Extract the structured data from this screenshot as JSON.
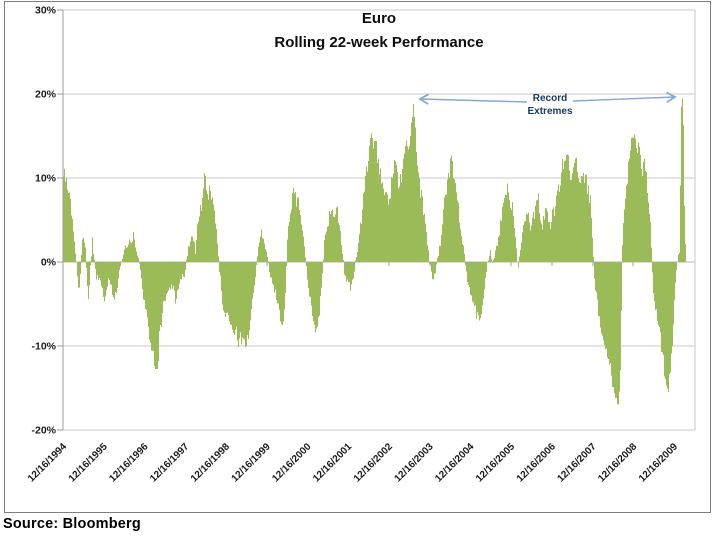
{
  "colors": {
    "bar": "#9bbb59",
    "grid": "#c8c8c8",
    "axis": "#9d9d9d",
    "zero_line": "#b5b5b5",
    "frame_border": "#7f7f7f",
    "label_text": "#1a1a1a",
    "annotation_text": "#17375e",
    "arrow": "#84a7d3"
  },
  "chart_data": {
    "type": "bar",
    "title": "Euro",
    "subtitle": "Rolling 22-week Performance",
    "unit": "%",
    "ylim": [
      -20,
      30
    ],
    "grid": "horizontal",
    "legend": "none",
    "annotation_line1": "Record",
    "annotation_line2": "Extremes",
    "source": "Source: Bloomberg",
    "yticks": [
      {
        "value": 30,
        "label": "30%"
      },
      {
        "value": 20,
        "label": "20%"
      },
      {
        "value": 10,
        "label": "10%"
      },
      {
        "value": 0,
        "label": "0%"
      },
      {
        "value": -10,
        "label": "-10%"
      },
      {
        "value": -20,
        "label": "-20%"
      }
    ],
    "xtick_labels": [
      "12/16/1994",
      "12/16/1995",
      "12/16/1996",
      "12/16/1997",
      "12/16/1998",
      "12/16/1999",
      "12/16/2000",
      "12/16/2001",
      "12/16/2002",
      "12/16/2003",
      "12/16/2004",
      "12/16/2005",
      "12/16/2006",
      "12/16/2007",
      "12/16/2008",
      "12/16/2009"
    ],
    "x_start_year": 1994.958,
    "sampling": "weekly bars, values reconstructed from chart as keypoints [year, percent]",
    "annotations": [
      {
        "text": "Record Extremes",
        "targets": [
          {
            "year": 2003.55,
            "value": 19.0
          },
          {
            "year": 2010.13,
            "value": 20.4
          }
        ]
      }
    ],
    "series": [
      {
        "name": "Euro rolling 22-week performance (%)",
        "keypoints": [
          [
            1994.96,
            10.2
          ],
          [
            1995.08,
            8.8
          ],
          [
            1995.21,
            3.0
          ],
          [
            1995.28,
            -0.5
          ],
          [
            1995.35,
            -3.5
          ],
          [
            1995.43,
            3.6
          ],
          [
            1995.5,
            1.2
          ],
          [
            1995.57,
            -4.2
          ],
          [
            1995.67,
            2.4
          ],
          [
            1995.75,
            -1.5
          ],
          [
            1995.87,
            -2.8
          ],
          [
            1995.99,
            -4.3
          ],
          [
            1996.09,
            -1.6
          ],
          [
            1996.21,
            -5.0
          ],
          [
            1996.31,
            -1.8
          ],
          [
            1996.43,
            1.2
          ],
          [
            1996.56,
            2.2
          ],
          [
            1996.68,
            3.0
          ],
          [
            1996.75,
            1.5
          ],
          [
            1996.83,
            -0.5
          ],
          [
            1996.92,
            -4.0
          ],
          [
            1997.02,
            -7.0
          ],
          [
            1997.1,
            -9.0
          ],
          [
            1997.17,
            -11.0
          ],
          [
            1997.27,
            -12.4
          ],
          [
            1997.34,
            -7.5
          ],
          [
            1997.44,
            -4.5
          ],
          [
            1997.54,
            -3.0
          ],
          [
            1997.64,
            -3.2
          ],
          [
            1997.73,
            -4.6
          ],
          [
            1997.83,
            -2.2
          ],
          [
            1997.93,
            -1.5
          ],
          [
            1998.03,
            2.0
          ],
          [
            1998.13,
            3.4
          ],
          [
            1998.2,
            1.0
          ],
          [
            1998.27,
            5.5
          ],
          [
            1998.35,
            7.0
          ],
          [
            1998.42,
            9.6
          ],
          [
            1998.5,
            8.0
          ],
          [
            1998.57,
            8.4
          ],
          [
            1998.64,
            7.6
          ],
          [
            1998.72,
            4.0
          ],
          [
            1998.79,
            -1.0
          ],
          [
            1998.86,
            -4.5
          ],
          [
            1998.96,
            -6.6
          ],
          [
            1999.06,
            -7.8
          ],
          [
            1999.16,
            -8.5
          ],
          [
            1999.26,
            -9.2
          ],
          [
            1999.36,
            -9.0
          ],
          [
            1999.45,
            -9.6
          ],
          [
            1999.53,
            -8.0
          ],
          [
            1999.6,
            -5.0
          ],
          [
            1999.67,
            -1.5
          ],
          [
            1999.75,
            2.2
          ],
          [
            1999.82,
            3.3
          ],
          [
            1999.89,
            2.6
          ],
          [
            1999.97,
            0.5
          ],
          [
            2000.04,
            -1.8
          ],
          [
            2000.14,
            -3.5
          ],
          [
            2000.24,
            -5.5
          ],
          [
            2000.31,
            -6.8
          ],
          [
            2000.39,
            -6.0
          ],
          [
            2000.44,
            0.5
          ],
          [
            2000.48,
            4.5
          ],
          [
            2000.56,
            6.5
          ],
          [
            2000.63,
            9.0
          ],
          [
            2000.68,
            7.0
          ],
          [
            2000.73,
            7.8
          ],
          [
            2000.78,
            6.0
          ],
          [
            2000.83,
            3.5
          ],
          [
            2000.9,
            0.5
          ],
          [
            2000.98,
            -3.0
          ],
          [
            2001.05,
            -5.5
          ],
          [
            2001.12,
            -7.0
          ],
          [
            2001.2,
            -8.8
          ],
          [
            2001.27,
            -4.0
          ],
          [
            2001.32,
            -1.0
          ],
          [
            2001.37,
            2.5
          ],
          [
            2001.44,
            4.5
          ],
          [
            2001.52,
            6.3
          ],
          [
            2001.59,
            5.0
          ],
          [
            2001.66,
            7.0
          ],
          [
            2001.74,
            4.5
          ],
          [
            2001.79,
            2.0
          ],
          [
            2001.86,
            -1.5
          ],
          [
            2001.96,
            -2.8
          ],
          [
            2002.03,
            -3.2
          ],
          [
            2002.1,
            -0.8
          ],
          [
            2002.18,
            1.5
          ],
          [
            2002.25,
            4.0
          ],
          [
            2002.33,
            7.5
          ],
          [
            2002.4,
            11.0
          ],
          [
            2002.47,
            14.0
          ],
          [
            2002.52,
            15.6
          ],
          [
            2002.57,
            13.5
          ],
          [
            2002.62,
            14.8
          ],
          [
            2002.67,
            12.5
          ],
          [
            2002.74,
            11.0
          ],
          [
            2002.79,
            9.0
          ],
          [
            2002.86,
            8.0
          ],
          [
            2002.94,
            7.0
          ],
          [
            2002.99,
            8.5
          ],
          [
            2003.04,
            10.5
          ],
          [
            2003.09,
            12.8
          ],
          [
            2003.14,
            11.0
          ],
          [
            2003.18,
            8.0
          ],
          [
            2003.23,
            9.5
          ],
          [
            2003.28,
            11.5
          ],
          [
            2003.33,
            13.8
          ],
          [
            2003.38,
            14.5
          ],
          [
            2003.43,
            13.0
          ],
          [
            2003.48,
            15.5
          ],
          [
            2003.53,
            17.5
          ],
          [
            2003.55,
            19.0
          ],
          [
            2003.58,
            17.0
          ],
          [
            2003.63,
            13.5
          ],
          [
            2003.68,
            11.0
          ],
          [
            2003.72,
            8.5
          ],
          [
            2003.77,
            7.0
          ],
          [
            2003.82,
            5.0
          ],
          [
            2003.87,
            3.0
          ],
          [
            2003.92,
            1.0
          ],
          [
            2003.97,
            -0.8
          ],
          [
            2004.02,
            -2.2
          ],
          [
            2004.09,
            -1.2
          ],
          [
            2004.14,
            0.5
          ],
          [
            2004.19,
            1.5
          ],
          [
            2004.24,
            3.5
          ],
          [
            2004.29,
            6.0
          ],
          [
            2004.34,
            8.0
          ],
          [
            2004.39,
            9.5
          ],
          [
            2004.44,
            11.0
          ],
          [
            2004.49,
            12.3
          ],
          [
            2004.54,
            10.5
          ],
          [
            2004.58,
            9.0
          ],
          [
            2004.63,
            7.5
          ],
          [
            2004.68,
            5.5
          ],
          [
            2004.73,
            3.5
          ],
          [
            2004.78,
            1.5
          ],
          [
            2004.83,
            -0.5
          ],
          [
            2004.88,
            -2.0
          ],
          [
            2004.93,
            -3.2
          ],
          [
            2005.0,
            -4.5
          ],
          [
            2005.08,
            -5.8
          ],
          [
            2005.15,
            -7.0
          ],
          [
            2005.2,
            -6.2
          ],
          [
            2005.25,
            -4.8
          ],
          [
            2005.3,
            -3.0
          ],
          [
            2005.35,
            -1.2
          ],
          [
            2005.39,
            0.5
          ],
          [
            2005.44,
            1.0
          ],
          [
            2005.49,
            -0.5
          ],
          [
            2005.54,
            0.8
          ],
          [
            2005.59,
            1.8
          ],
          [
            2005.64,
            3.0
          ],
          [
            2005.69,
            4.5
          ],
          [
            2005.74,
            6.0
          ],
          [
            2005.79,
            7.5
          ],
          [
            2005.84,
            8.8
          ],
          [
            2005.89,
            8.0
          ],
          [
            2005.94,
            6.5
          ],
          [
            2005.98,
            7.5
          ],
          [
            2006.03,
            4.0
          ],
          [
            2006.08,
            1.5
          ],
          [
            2006.13,
            -0.8
          ],
          [
            2006.18,
            2.0
          ],
          [
            2006.23,
            3.8
          ],
          [
            2006.28,
            5.0
          ],
          [
            2006.33,
            6.5
          ],
          [
            2006.38,
            5.5
          ],
          [
            2006.43,
            4.0
          ],
          [
            2006.47,
            4.8
          ],
          [
            2006.52,
            6.0
          ],
          [
            2006.57,
            7.2
          ],
          [
            2006.62,
            8.0
          ],
          [
            2006.67,
            5.5
          ],
          [
            2006.72,
            4.5
          ],
          [
            2006.77,
            5.5
          ],
          [
            2006.82,
            6.3
          ],
          [
            2006.87,
            5.0
          ],
          [
            2006.92,
            4.5
          ],
          [
            2006.96,
            5.5
          ],
          [
            2007.01,
            6.0
          ],
          [
            2007.06,
            7.0
          ],
          [
            2007.11,
            8.5
          ],
          [
            2007.16,
            10.0
          ],
          [
            2007.21,
            11.5
          ],
          [
            2007.26,
            12.0
          ],
          [
            2007.31,
            13.0
          ],
          [
            2007.36,
            12.0
          ],
          [
            2007.41,
            10.5
          ],
          [
            2007.46,
            9.5
          ],
          [
            2007.5,
            11.0
          ],
          [
            2007.55,
            12.5
          ],
          [
            2007.6,
            11.0
          ],
          [
            2007.65,
            10.0
          ],
          [
            2007.7,
            11.0
          ],
          [
            2007.75,
            9.0
          ],
          [
            2007.8,
            9.8
          ],
          [
            2007.85,
            8.5
          ],
          [
            2007.9,
            7.0
          ],
          [
            2007.95,
            2.0
          ],
          [
            2008.0,
            -2.5
          ],
          [
            2008.05,
            -4.0
          ],
          [
            2008.09,
            -5.5
          ],
          [
            2008.14,
            -7.0
          ],
          [
            2008.19,
            -8.0
          ],
          [
            2008.24,
            -9.5
          ],
          [
            2008.29,
            -10.5
          ],
          [
            2008.34,
            -11.5
          ],
          [
            2008.39,
            -12.5
          ],
          [
            2008.44,
            -14.0
          ],
          [
            2008.49,
            -15.5
          ],
          [
            2008.54,
            -16.5
          ],
          [
            2008.59,
            -17.0
          ],
          [
            2008.64,
            -12.0
          ],
          [
            2008.66,
            -5.0
          ],
          [
            2008.68,
            2.0
          ],
          [
            2008.73,
            6.0
          ],
          [
            2008.78,
            9.0
          ],
          [
            2008.83,
            11.5
          ],
          [
            2008.88,
            13.0
          ],
          [
            2008.93,
            14.5
          ],
          [
            2008.98,
            15.0
          ],
          [
            2009.03,
            13.5
          ],
          [
            2009.08,
            14.5
          ],
          [
            2009.13,
            12.0
          ],
          [
            2009.18,
            11.0
          ],
          [
            2009.22,
            12.5
          ],
          [
            2009.27,
            10.5
          ],
          [
            2009.32,
            8.0
          ],
          [
            2009.37,
            4.0
          ],
          [
            2009.4,
            1.0
          ],
          [
            2009.42,
            -2.0
          ],
          [
            2009.47,
            -4.5
          ],
          [
            2009.52,
            -6.5
          ],
          [
            2009.57,
            -8.0
          ],
          [
            2009.62,
            -9.5
          ],
          [
            2009.66,
            -11.0
          ],
          [
            2009.71,
            -13.0
          ],
          [
            2009.76,
            -14.5
          ],
          [
            2009.81,
            -15.2
          ],
          [
            2009.86,
            -12.5
          ],
          [
            2009.91,
            -9.0
          ],
          [
            2009.96,
            -4.0
          ],
          [
            2010.01,
            -1.0
          ],
          [
            2010.06,
            0.8
          ],
          [
            2010.09,
            1.5
          ],
          [
            2010.11,
            12.0
          ],
          [
            2010.135,
            20.4
          ],
          [
            2010.16,
            19.5
          ],
          [
            2010.18,
            16.0
          ],
          [
            2010.21,
            5.0
          ],
          [
            2010.23,
            2.2
          ]
        ]
      }
    ]
  }
}
